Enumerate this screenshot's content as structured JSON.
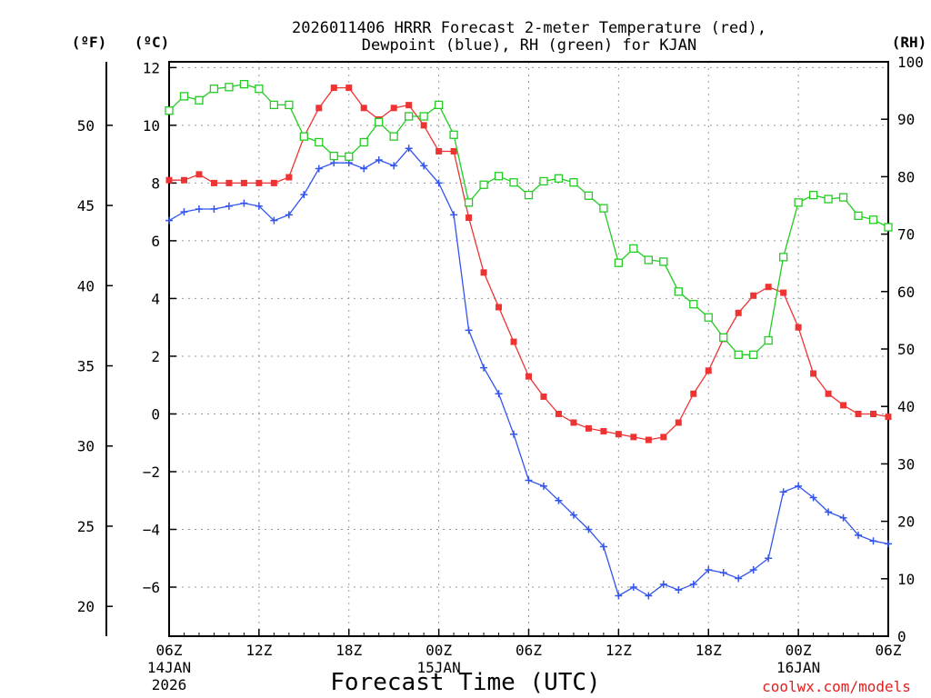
{
  "chart_data": {
    "type": "line",
    "title": "2026011406 HRRR Forecast 2-meter Temperature (red),",
    "subtitle": "Dewpoint (blue), RH (green) for KJAN",
    "xlabel": "Forecast Time (UTC)",
    "unit_labels": {
      "fahrenheit": "(ºF)",
      "celsius": "(ºC)",
      "rh": "(RH)"
    },
    "watermark": "coolwx.com/models",
    "x_hours_from_start": [
      0,
      1,
      2,
      3,
      4,
      5,
      6,
      7,
      8,
      9,
      10,
      11,
      12,
      13,
      14,
      15,
      16,
      17,
      18,
      19,
      20,
      21,
      22,
      23,
      24,
      25,
      26,
      27,
      28,
      29,
      30,
      31,
      32,
      33,
      34,
      35,
      36,
      37,
      38,
      39,
      40,
      41,
      42,
      43,
      44,
      45,
      46,
      47,
      48
    ],
    "xlim": [
      0,
      48
    ],
    "x_ticks": [
      {
        "hour": 0,
        "label": "06Z",
        "sub1": "14JAN",
        "sub2": "2026"
      },
      {
        "hour": 6,
        "label": "12Z"
      },
      {
        "hour": 12,
        "label": "18Z"
      },
      {
        "hour": 18,
        "label": "00Z",
        "sub1": "15JAN"
      },
      {
        "hour": 24,
        "label": "06Z"
      },
      {
        "hour": 30,
        "label": "12Z"
      },
      {
        "hour": 36,
        "label": "18Z"
      },
      {
        "hour": 42,
        "label": "00Z",
        "sub1": "16JAN"
      },
      {
        "hour": 48,
        "label": "06Z"
      }
    ],
    "celsius_axis": {
      "range": [
        -7.7,
        12.2
      ],
      "ticks": [
        "12",
        "10",
        "8",
        "6",
        "4",
        "2",
        "0",
        "−2",
        "−4",
        "−6"
      ]
    },
    "fahrenheit_axis": {
      "ticks": [
        "50",
        "45",
        "40",
        "35",
        "30",
        "25",
        "20"
      ]
    },
    "rh_axis": {
      "range": [
        0,
        100
      ],
      "ticks": [
        "100",
        "90",
        "80",
        "70",
        "60",
        "50",
        "40",
        "30",
        "20",
        "10",
        "0"
      ]
    },
    "series": [
      {
        "name": "Temperature",
        "units": "C",
        "color": "#ee3333",
        "marker": "filled-square",
        "values": [
          8.1,
          8.1,
          8.3,
          8.0,
          8.0,
          8.0,
          8.0,
          8.0,
          8.2,
          9.6,
          10.6,
          11.3,
          11.3,
          10.6,
          10.2,
          10.6,
          10.7,
          10.0,
          9.1,
          9.1,
          6.8,
          4.9,
          3.7,
          2.5,
          1.3,
          0.6,
          0.0,
          -0.3,
          -0.5,
          -0.6,
          -0.7,
          -0.8,
          -0.9,
          -0.8,
          -0.3,
          0.7,
          1.5,
          2.6,
          3.5,
          4.1,
          4.4,
          4.2,
          3.0,
          1.4,
          0.7,
          0.3,
          0.0,
          0.0,
          -0.1
        ]
      },
      {
        "name": "Dewpoint",
        "units": "C",
        "color": "#3355ee",
        "marker": "plus",
        "values": [
          6.7,
          7.0,
          7.1,
          7.1,
          7.2,
          7.3,
          7.2,
          6.7,
          6.9,
          7.6,
          8.5,
          8.7,
          8.7,
          8.5,
          8.8,
          8.6,
          9.2,
          8.6,
          8.0,
          6.9,
          2.9,
          1.6,
          0.7,
          -0.7,
          -2.3,
          -2.5,
          -3.0,
          -3.5,
          -4.0,
          -4.6,
          -6.3,
          -6.0,
          -6.3,
          -5.9,
          -6.1,
          -5.9,
          -5.4,
          -5.5,
          -5.7,
          -5.4,
          -5.0,
          -2.7,
          -2.5,
          -2.9,
          -3.4,
          -3.6,
          -4.2,
          -4.4,
          -4.5
        ]
      },
      {
        "name": "RH",
        "units": "%",
        "color": "#22cc22",
        "marker": "open-square",
        "values": [
          91.5,
          94,
          93.3,
          95.3,
          95.6,
          96.1,
          95.3,
          92.5,
          92.5,
          87,
          86,
          83.6,
          83.5,
          86.0,
          89.5,
          87,
          90.5,
          90.5,
          92.5,
          87.3,
          75.5,
          78.6,
          80.1,
          79,
          76.8,
          79.2,
          79.7,
          79,
          76.7,
          74.5,
          65,
          67.5,
          65.5,
          65.2,
          60,
          57.8,
          55.5,
          52,
          49,
          49,
          51.5,
          66,
          75.5,
          76.8,
          76.1,
          76.4,
          73.2,
          72.5,
          71.2
        ]
      }
    ]
  }
}
